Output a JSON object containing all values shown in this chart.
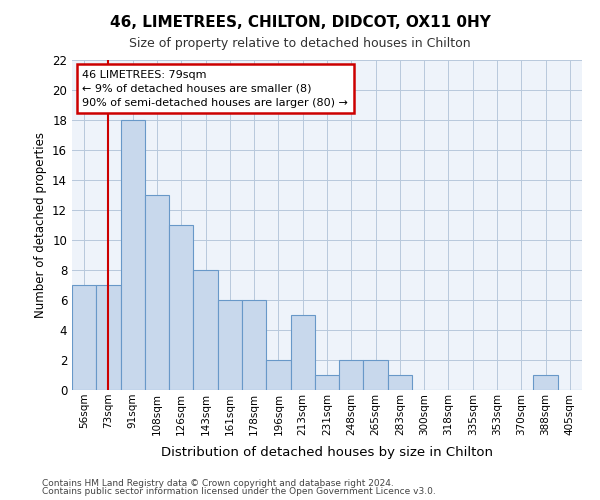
{
  "title": "46, LIMETREES, CHILTON, DIDCOT, OX11 0HY",
  "subtitle": "Size of property relative to detached houses in Chilton",
  "xlabel": "Distribution of detached houses by size in Chilton",
  "ylabel": "Number of detached properties",
  "categories": [
    "56sqm",
    "73sqm",
    "91sqm",
    "108sqm",
    "126sqm",
    "143sqm",
    "161sqm",
    "178sqm",
    "196sqm",
    "213sqm",
    "231sqm",
    "248sqm",
    "265sqm",
    "283sqm",
    "300sqm",
    "318sqm",
    "335sqm",
    "353sqm",
    "370sqm",
    "388sqm",
    "405sqm"
  ],
  "values": [
    7,
    7,
    18,
    13,
    11,
    8,
    6,
    6,
    2,
    5,
    1,
    2,
    2,
    1,
    0,
    0,
    0,
    0,
    0,
    1,
    0
  ],
  "bar_color": "#c8d8ec",
  "bar_edge_color": "#6898c8",
  "vline_x": 1,
  "vline_color": "#cc0000",
  "ylim": [
    0,
    22
  ],
  "yticks": [
    0,
    2,
    4,
    6,
    8,
    10,
    12,
    14,
    16,
    18,
    20,
    22
  ],
  "annotation_text": "46 LIMETREES: 79sqm\n← 9% of detached houses are smaller (8)\n90% of semi-detached houses are larger (80) →",
  "annotation_box_facecolor": "#ffffff",
  "annotation_box_edge": "#cc0000",
  "footer_line1": "Contains HM Land Registry data © Crown copyright and database right 2024.",
  "footer_line2": "Contains public sector information licensed under the Open Government Licence v3.0.",
  "background_color": "#ffffff",
  "plot_bg_color": "#eef3fa",
  "grid_color": "#b8c8dc"
}
